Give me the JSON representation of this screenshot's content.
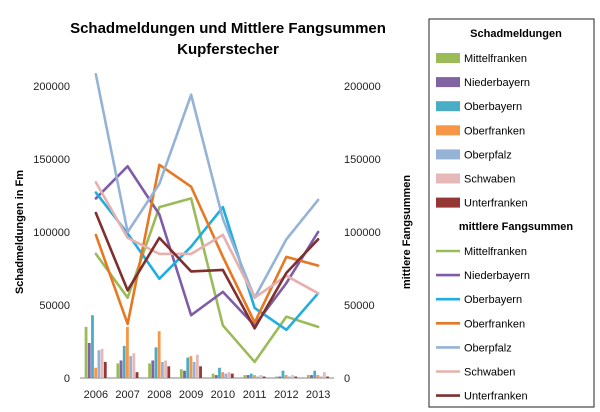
{
  "chart_data": {
    "type": "bar+line",
    "title_line1": "Schadmeldungen und Mittlere Fangsummen",
    "title_line2": "Kupferstecher",
    "ylabel_left": "Schadmeldungen in Fm",
    "ylabel_right": "mittlere Fangsummen",
    "categories": [
      "2006",
      "2007",
      "2008",
      "2009",
      "2010",
      "2011",
      "2012",
      "2013"
    ],
    "ylim": [
      0,
      200000
    ],
    "yticks": [
      "0",
      "50000",
      "100000",
      "150000",
      "200000"
    ],
    "grid": false,
    "legend_position": "right",
    "legend_groups": [
      {
        "heading": "Schadmeldungen",
        "kind": "bar"
      },
      {
        "heading": "mittlere Fangsummen",
        "kind": "line"
      }
    ],
    "regions": [
      {
        "name": "Mittelfranken",
        "bar_color": "#9BBB59",
        "line_color": "#9BBB59"
      },
      {
        "name": "Niederbayern",
        "bar_color": "#8064A2",
        "line_color": "#7E5CA8"
      },
      {
        "name": "Oberbayern",
        "bar_color": "#4BACC6",
        "line_color": "#1FAEE0"
      },
      {
        "name": "Oberfranken",
        "bar_color": "#F79646",
        "line_color": "#E87722"
      },
      {
        "name": "Oberpfalz",
        "bar_color": "#95B3D7",
        "line_color": "#95B3D7"
      },
      {
        "name": "Schwaben",
        "bar_color": "#E6B9B8",
        "line_color": "#E6B0AE"
      },
      {
        "name": "Unterfranken",
        "bar_color": "#953735",
        "line_color": "#7F2F2E"
      }
    ],
    "series_bars": [
      {
        "name": "Mittelfranken",
        "values": [
          35000,
          10000,
          10000,
          6000,
          3000,
          2000,
          1000,
          2000
        ]
      },
      {
        "name": "Niederbayern",
        "values": [
          24000,
          12000,
          12000,
          5000,
          2000,
          2000,
          1000,
          2000
        ]
      },
      {
        "name": "Oberbayern",
        "values": [
          43000,
          22000,
          21000,
          14000,
          7000,
          3000,
          5000,
          5000
        ]
      },
      {
        "name": "Oberfranken",
        "values": [
          7000,
          35000,
          32000,
          15000,
          4000,
          2000,
          2000,
          2000
        ]
      },
      {
        "name": "Oberpfalz",
        "values": [
          19000,
          15000,
          11000,
          11000,
          3000,
          1000,
          1000,
          1000
        ]
      },
      {
        "name": "Schwaben",
        "values": [
          20000,
          17000,
          12000,
          16000,
          4000,
          2000,
          2000,
          4000
        ]
      },
      {
        "name": "Unterfranken",
        "values": [
          11000,
          4000,
          8000,
          8000,
          3000,
          1000,
          1000,
          1000
        ]
      }
    ],
    "series_lines": [
      {
        "name": "Mittelfranken",
        "values": [
          85000,
          55000,
          117000,
          123000,
          36000,
          11000,
          42000,
          35000
        ]
      },
      {
        "name": "Niederbayern",
        "values": [
          123000,
          145000,
          112000,
          43000,
          59000,
          36000,
          65000,
          100000
        ]
      },
      {
        "name": "Oberbayern",
        "values": [
          127000,
          99000,
          68000,
          90000,
          117000,
          48000,
          33000,
          58000
        ]
      },
      {
        "name": "Oberfranken",
        "values": [
          98000,
          37000,
          146000,
          131000,
          83000,
          38000,
          83000,
          77000
        ]
      },
      {
        "name": "Oberpfalz",
        "values": [
          208000,
          100000,
          133000,
          194000,
          109000,
          55000,
          95000,
          122000
        ]
      },
      {
        "name": "Schwaben",
        "values": [
          134000,
          96000,
          85000,
          85000,
          98000,
          55000,
          70000,
          58000
        ]
      },
      {
        "name": "Unterfranken",
        "values": [
          113000,
          60000,
          96000,
          73000,
          74000,
          34000,
          72000,
          95000
        ]
      }
    ]
  }
}
